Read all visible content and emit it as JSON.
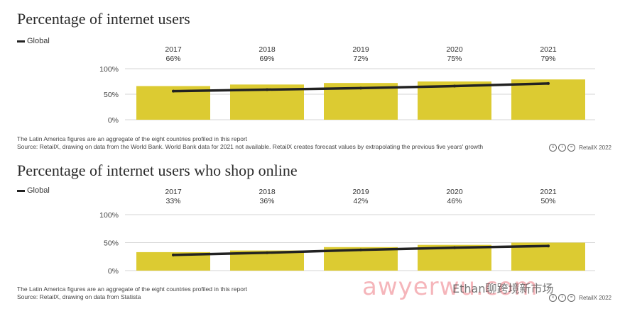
{
  "chart_data": [
    {
      "type": "bar",
      "title": "Percentage of internet users",
      "legend": [
        "Global"
      ],
      "categories": [
        "2017",
        "2018",
        "2019",
        "2020",
        "2021"
      ],
      "bar_labels": [
        "66%",
        "69%",
        "72%",
        "75%",
        "79%"
      ],
      "series": [
        {
          "name": "Latin America",
          "values": [
            66,
            69,
            72,
            75,
            79
          ],
          "color": "#dccb32"
        },
        {
          "name": "Global",
          "type": "line",
          "values": [
            56,
            59,
            62,
            66,
            71
          ],
          "color": "#222222"
        }
      ],
      "yticks": [
        "100%",
        "50%",
        "0%"
      ],
      "ylim": [
        0,
        100
      ],
      "notes": [
        "The Latin America figures are an aggregate of the eight countries profiled in this report",
        "Source: RetailX, drawing on data from the World Bank. World Bank data for 2021 not available. RetailX creates forecast values by extrapolating the previous five years' growth"
      ],
      "credit": "RetailX 2022"
    },
    {
      "type": "bar",
      "title": "Percentage of internet users who shop online",
      "legend": [
        "Global"
      ],
      "categories": [
        "2017",
        "2018",
        "2019",
        "2020",
        "2021"
      ],
      "bar_labels": [
        "33%",
        "36%",
        "42%",
        "46%",
        "50%"
      ],
      "series": [
        {
          "name": "Latin America",
          "values": [
            33,
            36,
            42,
            46,
            50
          ],
          "color": "#dccb32"
        },
        {
          "name": "Global",
          "type": "line",
          "values": [
            28,
            32,
            37,
            41,
            44
          ],
          "color": "#222222"
        }
      ],
      "yticks": [
        "100%",
        "50%",
        "0%"
      ],
      "ylim": [
        0,
        100
      ],
      "notes": [
        "The Latin America figures are an aggregate of the eight countries profiled in this report",
        "Source: RetailX, drawing on data from Statista"
      ],
      "credit": "RetailX 2022"
    }
  ],
  "watermark": {
    "text": "awyerwu.com",
    "caption": "Ethan聊跨境新市场"
  }
}
